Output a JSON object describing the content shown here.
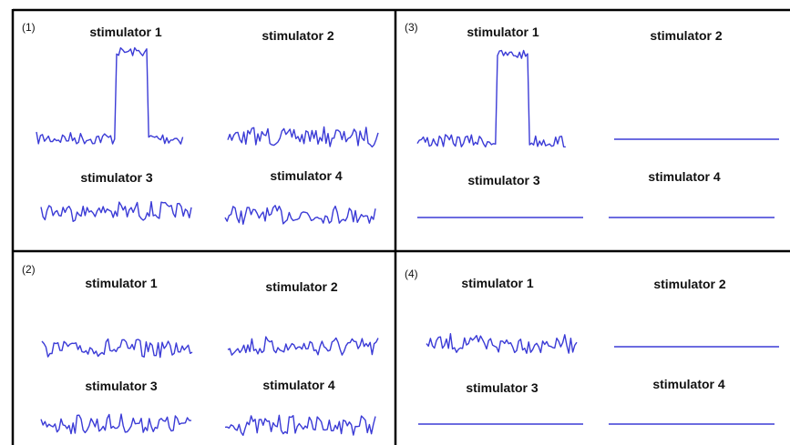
{
  "panels": [
    {
      "label": "(1)",
      "slots": [
        {
          "title": "stimulator 1",
          "signal": "pulse"
        },
        {
          "title": "stimulator 2",
          "signal": "noise"
        },
        {
          "title": "stimulator 3",
          "signal": "noise"
        },
        {
          "title": "stimulator 4",
          "signal": "noise"
        }
      ]
    },
    {
      "label": "(3)",
      "slots": [
        {
          "title": "stimulator 1",
          "signal": "pulse"
        },
        {
          "title": "stimulator 2",
          "signal": "flat"
        },
        {
          "title": "stimulator 3",
          "signal": "flat"
        },
        {
          "title": "stimulator 4",
          "signal": "flat"
        }
      ]
    },
    {
      "label": "(2)",
      "slots": [
        {
          "title": "stimulator 1",
          "signal": "noise"
        },
        {
          "title": "stimulator 2",
          "signal": "noise"
        },
        {
          "title": "stimulator 3",
          "signal": "noise"
        },
        {
          "title": "stimulator 4",
          "signal": "noise"
        }
      ]
    },
    {
      "label": "(4)",
      "slots": [
        {
          "title": "stimulator 1",
          "signal": "noise"
        },
        {
          "title": "stimulator 2",
          "signal": "flat"
        },
        {
          "title": "stimulator 3",
          "signal": "flat"
        },
        {
          "title": "stimulator 4",
          "signal": "flat"
        }
      ]
    }
  ],
  "colors": {
    "trace": "#3b3bd6",
    "border": "#000000"
  }
}
